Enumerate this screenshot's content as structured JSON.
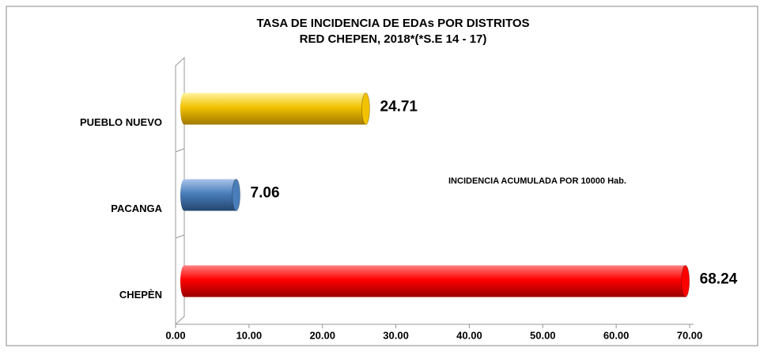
{
  "chart_data": {
    "type": "bar",
    "orientation": "horizontal",
    "title": [
      "TASA DE INCIDENCIA DE EDAs  POR DISTRITOS",
      "RED CHEPEN, 2018*(*S.E 14 - 17)"
    ],
    "annotation": "INCIDENCIA ACUMULADA POR 10000 Hab.",
    "categories": [
      "PUEBLO NUEVO",
      "PACANGA",
      "CHEPÈN"
    ],
    "values": [
      24.71,
      7.06,
      68.24
    ],
    "colors": [
      "#f2c200",
      "#4a7ebb",
      "#ff0000"
    ],
    "xlim": [
      0,
      70
    ],
    "xticks": [
      {
        "value": 0,
        "label": "0.00"
      },
      {
        "value": 10,
        "label": "10.00"
      },
      {
        "value": 20,
        "label": "20.00"
      },
      {
        "value": 30,
        "label": "30.00"
      },
      {
        "value": 40,
        "label": "40.00"
      },
      {
        "value": 50,
        "label": "50.00"
      },
      {
        "value": 60,
        "label": "60.00"
      },
      {
        "value": 70,
        "label": "70.00"
      }
    ]
  }
}
